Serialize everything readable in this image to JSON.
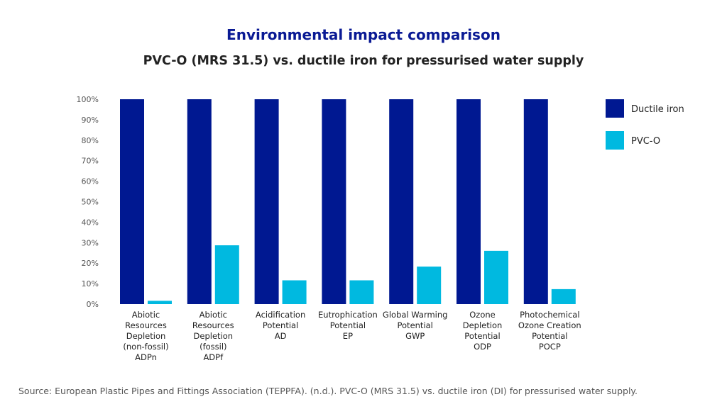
{
  "chart_data": {
    "type": "bar",
    "title": "Environmental impact comparison",
    "subtitle": "PVC-O (MRS 31.5) vs. ductile iron for pressurised water supply",
    "categories": [
      [
        "Abiotic",
        "Resources",
        "Depletion",
        "(non-fossil)",
        "ADPn"
      ],
      [
        "Abiotic",
        "Resources",
        "Depletion",
        "(fossil)",
        "ADPf"
      ],
      [
        "Acidification",
        "Potential",
        "AD"
      ],
      [
        "Eutrophication",
        "Potential",
        "EP"
      ],
      [
        "Global Warming",
        "Potential",
        "GWP"
      ],
      [
        "Ozone",
        "Depletion",
        "Potential",
        "ODP"
      ],
      [
        "Photochemical",
        "Ozone Creation",
        "Potential",
        "POCP"
      ]
    ],
    "series": [
      {
        "name": "Ductile iron",
        "color": "#001891",
        "values": [
          100,
          100,
          100,
          100,
          100,
          100,
          100
        ]
      },
      {
        "name": "PVC-O",
        "color": "#00b9e0",
        "values": [
          1.6,
          28.7,
          11.6,
          11.6,
          18.3,
          26,
          7.3
        ]
      }
    ],
    "yticks": [
      "0%",
      "10%",
      "20%",
      "30%",
      "40%",
      "50%",
      "60%",
      "70%",
      "80%",
      "90%",
      "100%"
    ],
    "ylim": [
      0,
      100
    ],
    "grid": false,
    "legend": "right",
    "source": "Source: European Plastic Pipes and Fittings Association (TEPPFA). (n.d.). PVC-O (MRS 31.5) vs. ductile iron (DI) for pressurised water supply."
  }
}
